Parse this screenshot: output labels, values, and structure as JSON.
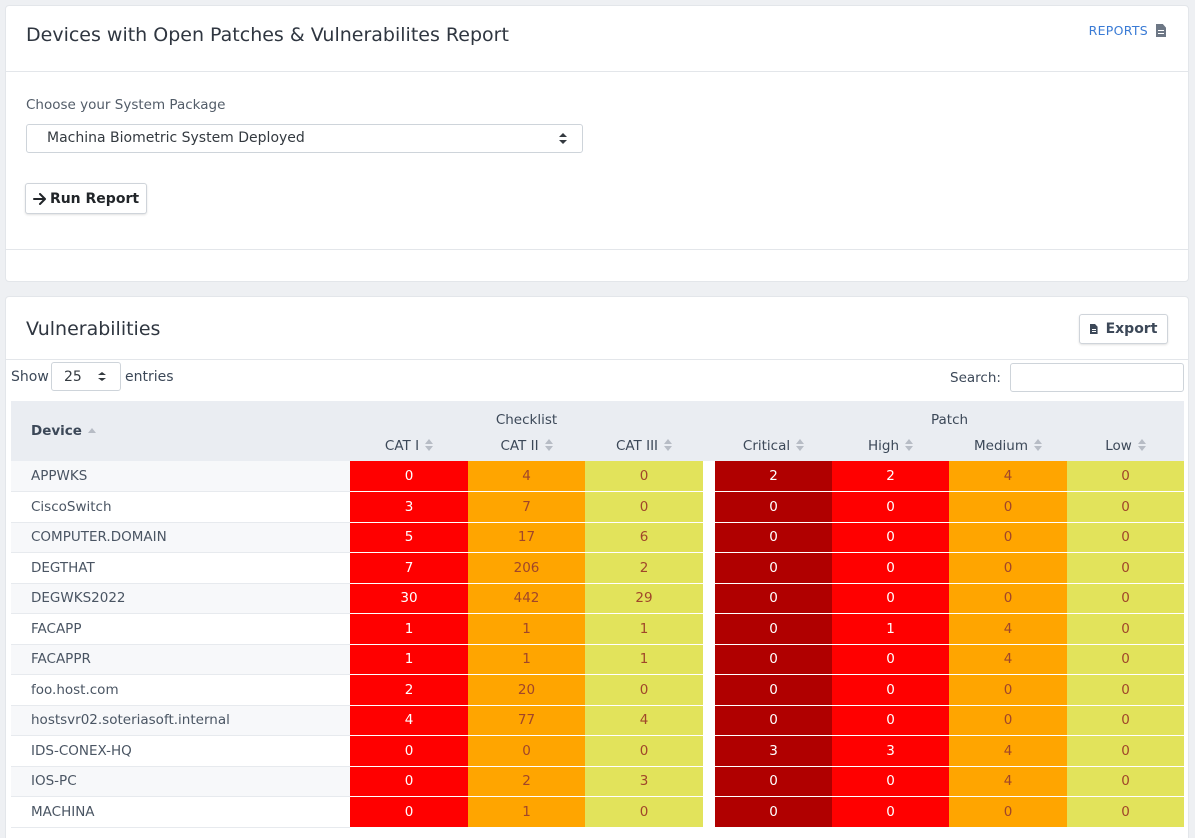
{
  "header": {
    "title": "Devices with Open Patches & Vulnerabilites Report",
    "reports_link": "REPORTS",
    "reports_icon": "document-icon"
  },
  "form": {
    "package_label": "Choose your System Package",
    "package_selected": "Machina Biometric System Deployed",
    "run_button": "Run Report",
    "run_icon": "arrow-right-icon"
  },
  "vuln": {
    "title": "Vulnerabilities",
    "export_button": "Export",
    "show_label": "Show",
    "entries_value": "25",
    "entries_label": "entries",
    "search_label": "Search:",
    "search_value": "",
    "columns": {
      "device": "Device",
      "checklist": "Checklist",
      "patch": "Patch",
      "cat1": "CAT I",
      "cat2": "CAT II",
      "cat3": "CAT III",
      "critical": "Critical",
      "high": "High",
      "medium": "Medium",
      "low": "Low"
    },
    "colors": {
      "cat1": "#ff0000",
      "cat2": "#ffa500",
      "cat3": "#e2e35b",
      "critical": "#b00000",
      "high": "#ff0000",
      "medium": "#ffa500",
      "low": "#e2e35b"
    },
    "rows": [
      {
        "device": "APPWKS",
        "cat1": "0",
        "cat2": "4",
        "cat3": "0",
        "critical": "2",
        "high": "2",
        "medium": "4",
        "low": "0"
      },
      {
        "device": "CiscoSwitch",
        "cat1": "3",
        "cat2": "7",
        "cat3": "0",
        "critical": "0",
        "high": "0",
        "medium": "0",
        "low": "0"
      },
      {
        "device": "COMPUTER.DOMAIN",
        "cat1": "5",
        "cat2": "17",
        "cat3": "6",
        "critical": "0",
        "high": "0",
        "medium": "0",
        "low": "0"
      },
      {
        "device": "DEGTHAT",
        "cat1": "7",
        "cat2": "206",
        "cat3": "2",
        "critical": "0",
        "high": "0",
        "medium": "0",
        "low": "0"
      },
      {
        "device": "DEGWKS2022",
        "cat1": "30",
        "cat2": "442",
        "cat3": "29",
        "critical": "0",
        "high": "0",
        "medium": "0",
        "low": "0"
      },
      {
        "device": "FACAPP",
        "cat1": "1",
        "cat2": "1",
        "cat3": "1",
        "critical": "0",
        "high": "1",
        "medium": "4",
        "low": "0"
      },
      {
        "device": "FACAPPR",
        "cat1": "1",
        "cat2": "1",
        "cat3": "1",
        "critical": "0",
        "high": "0",
        "medium": "4",
        "low": "0"
      },
      {
        "device": "foo.host.com",
        "cat1": "2",
        "cat2": "20",
        "cat3": "0",
        "critical": "0",
        "high": "0",
        "medium": "0",
        "low": "0"
      },
      {
        "device": "hostsvr02.soteriasoft.internal",
        "cat1": "4",
        "cat2": "77",
        "cat3": "4",
        "critical": "0",
        "high": "0",
        "medium": "0",
        "low": "0"
      },
      {
        "device": "IDS-CONEX-HQ",
        "cat1": "0",
        "cat2": "0",
        "cat3": "0",
        "critical": "3",
        "high": "3",
        "medium": "4",
        "low": "0"
      },
      {
        "device": "IOS-PC",
        "cat1": "0",
        "cat2": "2",
        "cat3": "3",
        "critical": "0",
        "high": "0",
        "medium": "4",
        "low": "0"
      },
      {
        "device": "MACHINA",
        "cat1": "0",
        "cat2": "1",
        "cat3": "0",
        "critical": "0",
        "high": "0",
        "medium": "0",
        "low": "0"
      }
    ]
  }
}
